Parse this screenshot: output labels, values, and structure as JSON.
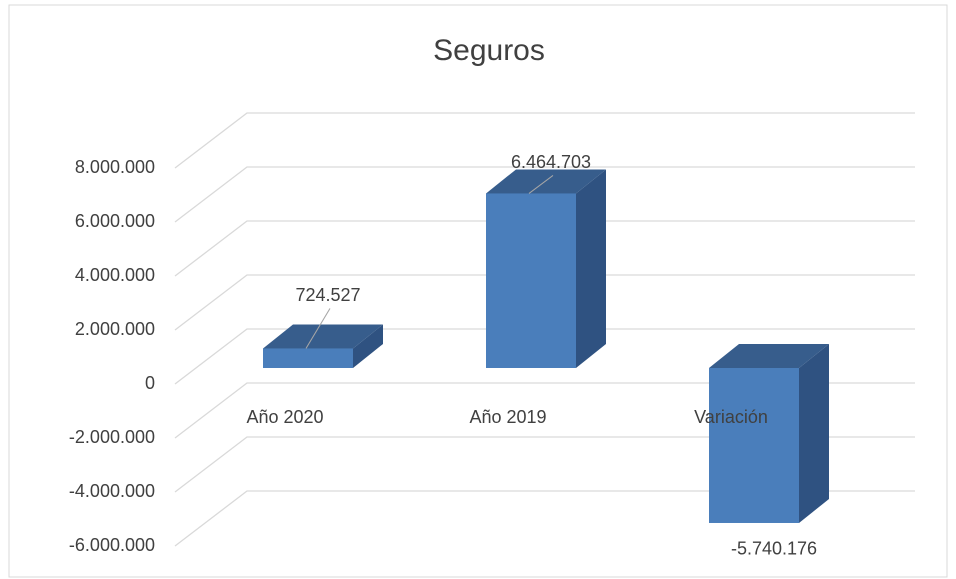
{
  "chart_data": {
    "type": "bar3d",
    "title": "Seguros",
    "categories": [
      "Año 2020",
      "Año 2019",
      "Variación"
    ],
    "values": [
      724527,
      6464703,
      -5740176
    ],
    "value_labels": [
      "724.527",
      "6.464.703",
      "-5.740.176"
    ],
    "color": "#4a7ebb",
    "ylim": [
      -6000000,
      8000000
    ],
    "yticks": [
      {
        "value": -6000000,
        "label": "-6.000.000"
      },
      {
        "value": -4000000,
        "label": "-4.000.000"
      },
      {
        "value": -2000000,
        "label": "-2.000.000"
      },
      {
        "value": 0,
        "label": "0"
      },
      {
        "value": 2000000,
        "label": "2.000.000"
      },
      {
        "value": 4000000,
        "label": "4.000.000"
      },
      {
        "value": 6000000,
        "label": "6.000.000"
      },
      {
        "value": 8000000,
        "label": "8.000.000"
      }
    ],
    "grid": true
  }
}
